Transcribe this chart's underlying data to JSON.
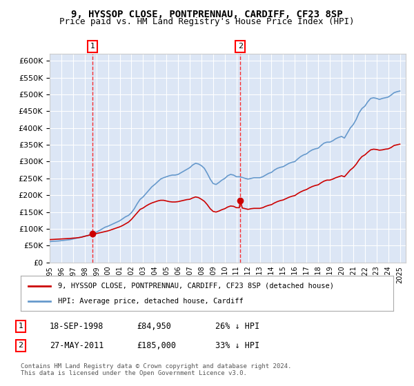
{
  "title1": "9, HYSSOP CLOSE, PONTPRENNAU, CARDIFF, CF23 8SP",
  "title2": "Price paid vs. HM Land Registry's House Price Index (HPI)",
  "background_color": "#dce6f5",
  "plot_bg_color": "#dce6f5",
  "ylabel_ticks": [
    "£0",
    "£50K",
    "£100K",
    "£150K",
    "£200K",
    "£250K",
    "£300K",
    "£350K",
    "£400K",
    "£450K",
    "£500K",
    "£550K",
    "£600K"
  ],
  "ytick_values": [
    0,
    50000,
    100000,
    150000,
    200000,
    250000,
    300000,
    350000,
    400000,
    450000,
    500000,
    550000,
    600000
  ],
  "ylim": [
    0,
    620000
  ],
  "hpi_color": "#6699cc",
  "price_color": "#cc0000",
  "sale1_date": "18-SEP-1998",
  "sale1_price": 84950,
  "sale1_label": "26% ↓ HPI",
  "sale2_date": "27-MAY-2011",
  "sale2_price": 185000,
  "sale2_label": "33% ↓ HPI",
  "legend_label1": "9, HYSSOP CLOSE, PONTPRENNAU, CARDIFF, CF23 8SP (detached house)",
  "legend_label2": "HPI: Average price, detached house, Cardiff",
  "footer": "Contains HM Land Registry data © Crown copyright and database right 2024.\nThis data is licensed under the Open Government Licence v3.0.",
  "x_start_year": 1995,
  "x_end_year": 2025,
  "hpi_data": {
    "1995-01": 62000,
    "1995-04": 63000,
    "1995-07": 63500,
    "1995-10": 64000,
    "1996-01": 65000,
    "1996-04": 66000,
    "1996-07": 67000,
    "1996-10": 68000,
    "1997-01": 70000,
    "1997-04": 72000,
    "1997-07": 74000,
    "1997-10": 76000,
    "1998-01": 78000,
    "1998-04": 80000,
    "1998-07": 83000,
    "1998-10": 86000,
    "1999-01": 90000,
    "1999-04": 95000,
    "1999-07": 100000,
    "1999-10": 105000,
    "2000-01": 108000,
    "2000-04": 112000,
    "2000-07": 116000,
    "2000-10": 120000,
    "2001-01": 124000,
    "2001-04": 130000,
    "2001-07": 136000,
    "2001-10": 140000,
    "2002-01": 148000,
    "2002-04": 160000,
    "2002-07": 175000,
    "2002-10": 188000,
    "2003-01": 195000,
    "2003-04": 205000,
    "2003-07": 215000,
    "2003-10": 225000,
    "2004-01": 232000,
    "2004-04": 240000,
    "2004-07": 248000,
    "2004-10": 252000,
    "2005-01": 255000,
    "2005-04": 258000,
    "2005-07": 260000,
    "2005-10": 260000,
    "2006-01": 262000,
    "2006-04": 267000,
    "2006-07": 272000,
    "2006-10": 277000,
    "2007-01": 282000,
    "2007-04": 290000,
    "2007-07": 295000,
    "2007-10": 293000,
    "2008-01": 288000,
    "2008-04": 280000,
    "2008-07": 265000,
    "2008-10": 248000,
    "2009-01": 235000,
    "2009-04": 232000,
    "2009-07": 238000,
    "2009-10": 245000,
    "2010-01": 250000,
    "2010-04": 258000,
    "2010-07": 262000,
    "2010-10": 260000,
    "2011-01": 255000,
    "2011-04": 255000,
    "2011-07": 253000,
    "2011-10": 250000,
    "2012-01": 248000,
    "2012-04": 250000,
    "2012-07": 252000,
    "2012-10": 252000,
    "2013-01": 252000,
    "2013-04": 255000,
    "2013-07": 260000,
    "2013-10": 265000,
    "2014-01": 268000,
    "2014-04": 275000,
    "2014-07": 280000,
    "2014-10": 283000,
    "2015-01": 285000,
    "2015-04": 290000,
    "2015-07": 295000,
    "2015-10": 298000,
    "2016-01": 300000,
    "2016-04": 308000,
    "2016-07": 315000,
    "2016-10": 320000,
    "2017-01": 323000,
    "2017-04": 330000,
    "2017-07": 335000,
    "2017-10": 338000,
    "2018-01": 340000,
    "2018-04": 348000,
    "2018-07": 355000,
    "2018-10": 358000,
    "2019-01": 358000,
    "2019-04": 362000,
    "2019-07": 368000,
    "2019-10": 372000,
    "2020-01": 375000,
    "2020-04": 370000,
    "2020-07": 385000,
    "2020-10": 400000,
    "2021-01": 410000,
    "2021-04": 425000,
    "2021-07": 445000,
    "2021-10": 458000,
    "2022-01": 465000,
    "2022-04": 478000,
    "2022-07": 488000,
    "2022-10": 490000,
    "2023-01": 488000,
    "2023-04": 485000,
    "2023-07": 488000,
    "2023-10": 490000,
    "2024-01": 492000,
    "2024-04": 498000,
    "2024-07": 505000,
    "2024-10": 508000,
    "2025-01": 510000
  },
  "price_data": {
    "1995-01": 68000,
    "1995-04": 68500,
    "1995-07": 69000,
    "1995-10": 69500,
    "1996-01": 70000,
    "1996-04": 70500,
    "1996-07": 71000,
    "1996-10": 71500,
    "1997-01": 72500,
    "1997-04": 73000,
    "1997-07": 74000,
    "1997-10": 75500,
    "1998-01": 78000,
    "1998-04": 80000,
    "1998-07": 82000,
    "1998-09": 84950,
    "1998-10": 85000,
    "1999-01": 86000,
    "1999-04": 88000,
    "1999-07": 90000,
    "1999-10": 92000,
    "2000-01": 94000,
    "2000-04": 97000,
    "2000-07": 100000,
    "2000-10": 103000,
    "2001-01": 106000,
    "2001-04": 110000,
    "2001-07": 115000,
    "2001-10": 120000,
    "2002-01": 128000,
    "2002-04": 138000,
    "2002-07": 148000,
    "2002-10": 158000,
    "2003-01": 162000,
    "2003-04": 168000,
    "2003-07": 173000,
    "2003-10": 177000,
    "2004-01": 180000,
    "2004-04": 183000,
    "2004-07": 185000,
    "2004-10": 185000,
    "2005-01": 183000,
    "2005-04": 181000,
    "2005-07": 180000,
    "2005-10": 180000,
    "2006-01": 181000,
    "2006-04": 183000,
    "2006-07": 185000,
    "2006-10": 187000,
    "2007-01": 188000,
    "2007-04": 192000,
    "2007-07": 195000,
    "2007-10": 193000,
    "2008-01": 188000,
    "2008-04": 182000,
    "2008-07": 172000,
    "2008-10": 160000,
    "2009-01": 152000,
    "2009-04": 150000,
    "2009-07": 153000,
    "2009-10": 157000,
    "2010-01": 160000,
    "2010-04": 165000,
    "2010-07": 168000,
    "2010-10": 167000,
    "2011-01": 163000,
    "2011-04": 163000,
    "2011-05": 185000,
    "2011-07": 162000,
    "2011-10": 160000,
    "2012-01": 158000,
    "2012-04": 160000,
    "2012-07": 161000,
    "2012-10": 161000,
    "2013-01": 161000,
    "2013-04": 163000,
    "2013-07": 167000,
    "2013-10": 170000,
    "2014-01": 172000,
    "2014-04": 177000,
    "2014-07": 181000,
    "2014-10": 184000,
    "2015-01": 186000,
    "2015-04": 190000,
    "2015-07": 194000,
    "2015-10": 197000,
    "2016-01": 199000,
    "2016-04": 205000,
    "2016-07": 210000,
    "2016-10": 214000,
    "2017-01": 217000,
    "2017-04": 222000,
    "2017-07": 226000,
    "2017-10": 229000,
    "2018-01": 231000,
    "2018-04": 237000,
    "2018-07": 242000,
    "2018-10": 245000,
    "2019-01": 245000,
    "2019-04": 248000,
    "2019-07": 252000,
    "2019-10": 255000,
    "2020-01": 258000,
    "2020-04": 255000,
    "2020-07": 265000,
    "2020-10": 275000,
    "2021-01": 282000,
    "2021-04": 292000,
    "2021-07": 305000,
    "2021-10": 315000,
    "2022-01": 320000,
    "2022-04": 328000,
    "2022-07": 335000,
    "2022-10": 337000,
    "2023-01": 336000,
    "2023-04": 334000,
    "2023-07": 335000,
    "2023-10": 337000,
    "2024-01": 338000,
    "2024-04": 342000,
    "2024-07": 348000,
    "2024-10": 350000,
    "2025-01": 352000
  }
}
